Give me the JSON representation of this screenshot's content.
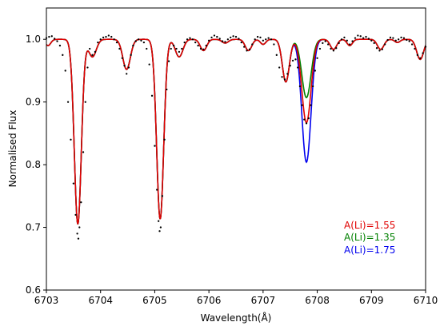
{
  "chart_data": {
    "type": "line",
    "xlabel": "Wavelength(Å)",
    "ylabel": "Normalised Flux",
    "xlim": [
      6703,
      6710
    ],
    "ylim": [
      0.6,
      1.05
    ],
    "x_ticks": [
      6703,
      6704,
      6705,
      6706,
      6707,
      6708,
      6709,
      6710
    ],
    "x_tick_labels": [
      "6703",
      "6704",
      "6705",
      "6706",
      "6707",
      "6708",
      "6709",
      "6710"
    ],
    "y_ticks": [
      0.6,
      0.7,
      0.8,
      0.9,
      1.0
    ],
    "y_tick_labels": [
      "0.6",
      "0.7",
      "0.8",
      "0.9",
      "1.0"
    ],
    "grid": false,
    "legend_position": "bottom-right",
    "colors": {
      "observed": "#000000",
      "li_155": "#e00000",
      "li_135": "#008000",
      "li_175": "#0000ee"
    },
    "continuum": 1.0,
    "absorption_features": [
      {
        "center": 6703.03,
        "depth": 0.01,
        "width": 0.05
      },
      {
        "center": 6703.58,
        "depth": 0.295,
        "width": 0.065
      },
      {
        "center": 6703.85,
        "depth": 0.028,
        "width": 0.07
      },
      {
        "center": 6704.48,
        "depth": 0.048,
        "width": 0.07
      },
      {
        "center": 6705.1,
        "depth": 0.287,
        "width": 0.065
      },
      {
        "center": 6705.45,
        "depth": 0.028,
        "width": 0.07
      },
      {
        "center": 6705.9,
        "depth": 0.018,
        "width": 0.06
      },
      {
        "center": 6706.3,
        "depth": 0.006,
        "width": 0.06
      },
      {
        "center": 6706.73,
        "depth": 0.018,
        "width": 0.06
      },
      {
        "center": 6707.0,
        "depth": 0.008,
        "width": 0.05
      },
      {
        "center": 6707.42,
        "depth": 0.068,
        "width": 0.065
      },
      {
        "center": 6708.3,
        "depth": 0.016,
        "width": 0.06
      },
      {
        "center": 6708.6,
        "depth": 0.01,
        "width": 0.05
      },
      {
        "center": 6709.17,
        "depth": 0.016,
        "width": 0.06
      },
      {
        "center": 6709.48,
        "depth": 0.005,
        "width": 0.05
      },
      {
        "center": 6709.9,
        "depth": 0.032,
        "width": 0.065
      }
    ],
    "lithium_feature": {
      "center": 6707.8,
      "width": 0.085
    },
    "series": [
      {
        "name": "A(Li)=1.55",
        "color": "#e00000",
        "li_depth": 0.133
      },
      {
        "name": "A(Li)=1.35",
        "color": "#008000",
        "li_depth": 0.093
      },
      {
        "name": "A(Li)=1.75",
        "color": "#0000ee",
        "li_depth": 0.196
      }
    ],
    "observed_points": [
      [
        6703.0,
        1.002
      ],
      [
        6703.05,
        1.004
      ],
      [
        6703.1,
        1.005
      ],
      [
        6703.15,
        1.001
      ],
      [
        6703.2,
        0.997
      ],
      [
        6703.25,
        0.99
      ],
      [
        6703.3,
        0.975
      ],
      [
        6703.35,
        0.95
      ],
      [
        6703.4,
        0.9
      ],
      [
        6703.45,
        0.84
      ],
      [
        6703.5,
        0.77
      ],
      [
        6703.54,
        0.72
      ],
      [
        6703.57,
        0.69
      ],
      [
        6703.59,
        0.682
      ],
      [
        6703.61,
        0.7
      ],
      [
        6703.64,
        0.74
      ],
      [
        6703.68,
        0.82
      ],
      [
        6703.72,
        0.9
      ],
      [
        6703.76,
        0.955
      ],
      [
        6703.8,
        0.985
      ],
      [
        6703.85,
        0.975
      ],
      [
        6703.9,
        0.98
      ],
      [
        6703.95,
        0.995
      ],
      [
        6704.0,
        1.0
      ],
      [
        6704.05,
        1.003
      ],
      [
        6704.1,
        1.004
      ],
      [
        6704.15,
        1.006
      ],
      [
        6704.2,
        1.004
      ],
      [
        6704.25,
        1.0
      ],
      [
        6704.3,
        0.995
      ],
      [
        6704.35,
        0.985
      ],
      [
        6704.4,
        0.97
      ],
      [
        6704.44,
        0.958
      ],
      [
        6704.48,
        0.945
      ],
      [
        6704.52,
        0.955
      ],
      [
        6704.56,
        0.975
      ],
      [
        6704.6,
        0.99
      ],
      [
        6704.65,
        0.997
      ],
      [
        6704.7,
        1.0
      ],
      [
        6704.75,
        0.998
      ],
      [
        6704.8,
        0.995
      ],
      [
        6704.85,
        0.985
      ],
      [
        6704.9,
        0.96
      ],
      [
        6704.95,
        0.91
      ],
      [
        6705.0,
        0.83
      ],
      [
        6705.04,
        0.76
      ],
      [
        6705.07,
        0.71
      ],
      [
        6705.09,
        0.694
      ],
      [
        6705.11,
        0.7
      ],
      [
        6705.14,
        0.75
      ],
      [
        6705.18,
        0.84
      ],
      [
        6705.22,
        0.92
      ],
      [
        6705.26,
        0.965
      ],
      [
        6705.3,
        0.985
      ],
      [
        6705.35,
        0.99
      ],
      [
        6705.4,
        0.985
      ],
      [
        6705.45,
        0.98
      ],
      [
        6705.5,
        0.985
      ],
      [
        6705.55,
        0.995
      ],
      [
        6705.6,
        1.0
      ],
      [
        6705.65,
        1.002
      ],
      [
        6705.7,
        1.0
      ],
      [
        6705.75,
        0.995
      ],
      [
        6705.8,
        0.99
      ],
      [
        6705.85,
        0.985
      ],
      [
        6705.9,
        0.984
      ],
      [
        6705.95,
        0.99
      ],
      [
        6706.0,
        0.998
      ],
      [
        6706.05,
        1.003
      ],
      [
        6706.1,
        1.006
      ],
      [
        6706.15,
        1.004
      ],
      [
        6706.2,
        1.001
      ],
      [
        6706.25,
        0.997
      ],
      [
        6706.3,
        0.996
      ],
      [
        6706.35,
        1.0
      ],
      [
        6706.4,
        1.003
      ],
      [
        6706.45,
        1.005
      ],
      [
        6706.5,
        1.004
      ],
      [
        6706.55,
        1.001
      ],
      [
        6706.6,
        0.995
      ],
      [
        6706.65,
        0.988
      ],
      [
        6706.7,
        0.982
      ],
      [
        6706.75,
        0.984
      ],
      [
        6706.8,
        0.992
      ],
      [
        6706.85,
        1.0
      ],
      [
        6706.9,
        1.004
      ],
      [
        6706.95,
        1.003
      ],
      [
        6707.0,
        0.998
      ],
      [
        6707.05,
        1.0
      ],
      [
        6707.1,
        1.002
      ],
      [
        6707.15,
        1.0
      ],
      [
        6707.2,
        0.992
      ],
      [
        6707.25,
        0.975
      ],
      [
        6707.3,
        0.955
      ],
      [
        6707.35,
        0.94
      ],
      [
        6707.4,
        0.936
      ],
      [
        6707.45,
        0.945
      ],
      [
        6707.5,
        0.958
      ],
      [
        6707.55,
        0.966
      ],
      [
        6707.6,
        0.968
      ],
      [
        6707.64,
        0.955
      ],
      [
        6707.68,
        0.925
      ],
      [
        6707.72,
        0.895
      ],
      [
        6707.76,
        0.872
      ],
      [
        6707.8,
        0.866
      ],
      [
        6707.84,
        0.874
      ],
      [
        6707.88,
        0.895
      ],
      [
        6707.92,
        0.925
      ],
      [
        6707.96,
        0.95
      ],
      [
        6708.0,
        0.97
      ],
      [
        6708.05,
        0.985
      ],
      [
        6708.1,
        0.994
      ],
      [
        6708.15,
        0.997
      ],
      [
        6708.2,
        0.992
      ],
      [
        6708.25,
        0.985
      ],
      [
        6708.3,
        0.982
      ],
      [
        6708.35,
        0.986
      ],
      [
        6708.4,
        0.994
      ],
      [
        6708.45,
        1.0
      ],
      [
        6708.5,
        1.003
      ],
      [
        6708.55,
        0.998
      ],
      [
        6708.6,
        0.992
      ],
      [
        6708.65,
        0.997
      ],
      [
        6708.7,
        1.002
      ],
      [
        6708.75,
        1.006
      ],
      [
        6708.8,
        1.005
      ],
      [
        6708.85,
        1.002
      ],
      [
        6708.9,
        1.004
      ],
      [
        6708.95,
        1.001
      ],
      [
        6709.0,
        0.998
      ],
      [
        6709.05,
        0.994
      ],
      [
        6709.1,
        0.986
      ],
      [
        6709.15,
        0.982
      ],
      [
        6709.2,
        0.984
      ],
      [
        6709.25,
        0.992
      ],
      [
        6709.3,
        0.999
      ],
      [
        6709.35,
        1.003
      ],
      [
        6709.4,
        1.002
      ],
      [
        6709.45,
        0.998
      ],
      [
        6709.5,
        1.0
      ],
      [
        6709.55,
        1.003
      ],
      [
        6709.6,
        1.002
      ],
      [
        6709.65,
        0.999
      ],
      [
        6709.7,
        0.997
      ],
      [
        6709.75,
        0.992
      ],
      [
        6709.8,
        0.985
      ],
      [
        6709.85,
        0.975
      ],
      [
        6709.9,
        0.97
      ],
      [
        6709.95,
        0.978
      ],
      [
        6710.0,
        0.988
      ]
    ]
  }
}
